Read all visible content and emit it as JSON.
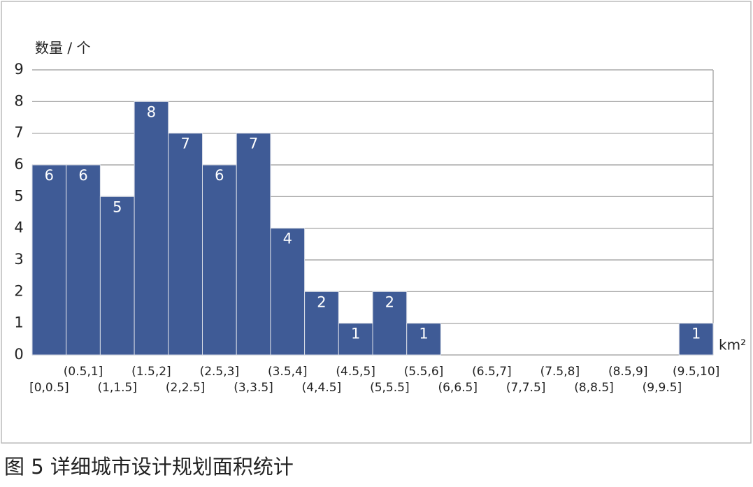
{
  "chart_data": {
    "type": "bar",
    "y_label": "数量 / 个",
    "x_unit": "km²",
    "caption": "图 5 详细城市设计规划面积统计",
    "categories": [
      "[0,0.5]",
      "(0.5,1]",
      "(1,1.5]",
      "(1.5,2]",
      "(2,2.5]",
      "(2.5,3]",
      "(3,3.5]",
      "(3.5,4]",
      "(4,4.5]",
      "(4.5,5]",
      "(5,5.5]",
      "(5.5,6]",
      "(6,6.5]",
      "(6.5,7]",
      "(7,7.5]",
      "(7.5,8]",
      "(8,8.5]",
      "(8.5,9]",
      "(9,9.5]",
      "(9.5,10]"
    ],
    "values": [
      6,
      6,
      5,
      8,
      7,
      6,
      7,
      4,
      2,
      1,
      2,
      1,
      0,
      0,
      0,
      0,
      0,
      0,
      0,
      1
    ],
    "color": "#3f5b96",
    "ylim": [
      0,
      9
    ],
    "yticks": [
      0,
      1,
      2,
      3,
      4,
      5,
      6,
      7,
      8,
      9
    ],
    "grid": true
  }
}
